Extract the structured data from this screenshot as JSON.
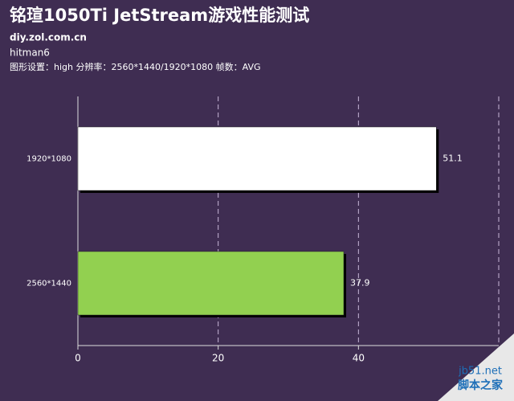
{
  "chart_data": {
    "type": "bar",
    "orientation": "horizontal",
    "title": "铭瑄1050Ti JetStream游戏性能测试",
    "subtitles": [
      "diy.zol.com.cn",
      "hitman6",
      "图形设置：high 分辨率：2560*1440/1920*1080 帧数：AVG"
    ],
    "categories": [
      "1920*1080",
      "2560*1440"
    ],
    "values": [
      51.1,
      37.9
    ],
    "colors": [
      "#ffffff",
      "#92d050"
    ],
    "xlim": [
      0,
      60
    ],
    "xticks": [
      0,
      20,
      40
    ],
    "grid": true
  },
  "watermark": {
    "site": "jb51.net",
    "name": "脚本之家"
  }
}
